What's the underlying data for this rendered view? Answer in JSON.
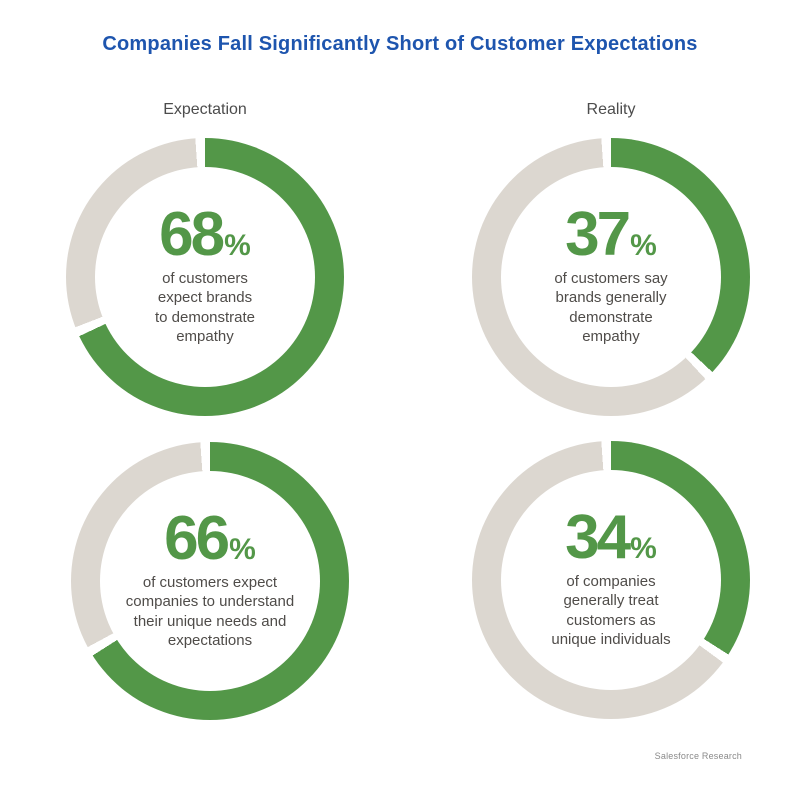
{
  "title": "Companies Fall Significantly Short of Customer Expectations",
  "column_headers": {
    "left": "Expectation",
    "right": "Reality"
  },
  "footer": {
    "source": "Salesforce Research"
  },
  "chart_data": {
    "type": "pie",
    "subtype": "donut",
    "layout": "2x2 grid, columns Expectation vs Reality, arcs start at 12 o'clock clockwise",
    "colors": {
      "filled": "#539748",
      "remainder": "#dcd7d0",
      "title_blue": "#1e55ae",
      "label_gray": "#4f4c49"
    },
    "columns": [
      "Expectation",
      "Reality"
    ],
    "donuts": [
      {
        "column": "Expectation",
        "row": 1,
        "value": 68,
        "unit": "%",
        "label_lines": [
          "of customers",
          "expect brands",
          "to demonstrate",
          "empathy"
        ]
      },
      {
        "column": "Reality",
        "row": 1,
        "value": 37,
        "unit": "%",
        "label_lines": [
          "of customers say",
          "brands generally",
          "demonstrate",
          "empathy"
        ]
      },
      {
        "column": "Expectation",
        "row": 2,
        "value": 66,
        "unit": "%",
        "label_lines": [
          "of customers expect",
          "companies to understand",
          "their unique needs and",
          "expectations"
        ]
      },
      {
        "column": "Reality",
        "row": 2,
        "value": 34,
        "unit": "%",
        "label_lines": [
          "of companies",
          "generally treat",
          "customers as",
          "unique individuals"
        ]
      }
    ]
  }
}
